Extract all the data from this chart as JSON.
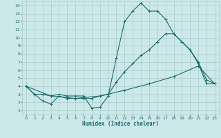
{
  "title": "",
  "xlabel": "Humidex (Indice chaleur)",
  "bg_color": "#cce8e8",
  "grid_color": "#aacccc",
  "line_color": "#1a6b6b",
  "xlim": [
    -0.5,
    23.5
  ],
  "ylim": [
    0.5,
    14.5
  ],
  "xticks": [
    0,
    1,
    2,
    3,
    4,
    5,
    6,
    7,
    8,
    9,
    10,
    11,
    12,
    13,
    14,
    15,
    16,
    17,
    18,
    19,
    20,
    21,
    22,
    23
  ],
  "yticks": [
    1,
    2,
    3,
    4,
    5,
    6,
    7,
    8,
    9,
    10,
    11,
    12,
    13,
    14
  ],
  "curve1_x": [
    0,
    1,
    2,
    3,
    4,
    5,
    6,
    7,
    8,
    9,
    10,
    11,
    12,
    13,
    14,
    15,
    16,
    17,
    18,
    19,
    20,
    21,
    22,
    23
  ],
  "curve1_y": [
    4,
    3,
    3,
    2.8,
    3,
    2.8,
    2.8,
    2.8,
    1.3,
    1.4,
    2.8,
    7.5,
    12.0,
    13.3,
    14.3,
    13.3,
    13.3,
    12.3,
    10.5,
    9.5,
    8.5,
    6.8,
    4.3,
    4.3
  ],
  "curve2_x": [
    0,
    1,
    2,
    3,
    4,
    5,
    6,
    7,
    8,
    9,
    10,
    11,
    12,
    13,
    14,
    15,
    16,
    17,
    18,
    19,
    20,
    21,
    22,
    23
  ],
  "curve2_y": [
    4,
    3,
    2.2,
    1.8,
    2.8,
    2.5,
    2.5,
    2.5,
    2.5,
    2.8,
    3.0,
    4.5,
    5.8,
    6.8,
    7.8,
    8.5,
    9.5,
    10.5,
    10.5,
    9.5,
    8.5,
    7.0,
    4.8,
    4.3
  ],
  "curve3_x": [
    0,
    3,
    6,
    9,
    12,
    15,
    18,
    21,
    23
  ],
  "curve3_y": [
    4,
    2.8,
    2.5,
    2.8,
    3.5,
    4.3,
    5.2,
    6.5,
    4.3
  ],
  "markersize": 3,
  "linewidth": 0.8
}
